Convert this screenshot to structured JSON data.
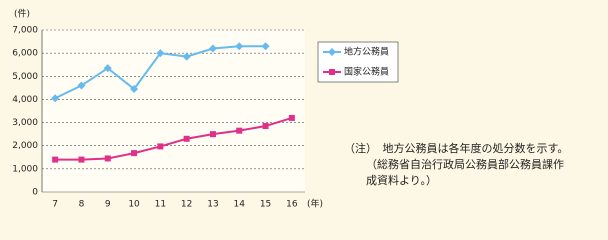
{
  "chart_data": {
    "type": "line",
    "y_unit": "(件)",
    "x_unit": "(年)",
    "categories": [
      "7",
      "8",
      "9",
      "10",
      "11",
      "12",
      "13",
      "14",
      "15",
      "16"
    ],
    "series": [
      {
        "name": "地方公務員",
        "color": "#66bbee",
        "marker": "diamond",
        "values": [
          4050,
          4600,
          5350,
          4450,
          6000,
          5850,
          6200,
          6300,
          6300,
          null
        ]
      },
      {
        "name": "国家公務員",
        "color": "#e0308a",
        "marker": "square",
        "values": [
          1400,
          1400,
          1450,
          1680,
          1970,
          2300,
          2500,
          2650,
          2850,
          3200
        ]
      }
    ],
    "ylim": [
      0,
      7000
    ],
    "yticks": [
      0,
      {
        "value": 1000,
        "label": "1,000"
      },
      {
        "value": 2000,
        "label": "2,000"
      },
      {
        "value": 3000,
        "label": "3,000"
      },
      {
        "value": 4000,
        "label": "4,000"
      },
      {
        "value": 5000,
        "label": "5,000"
      },
      {
        "value": 6000,
        "label": "6,000"
      },
      {
        "value": 7000,
        "label": "7,000"
      }
    ],
    "grid": true,
    "legend": "right",
    "note": [
      "（注）　地方公務員は各年度の処分数を示す。",
      "（総務省自治行政局公務員部公務員課作",
      "成資料より。）"
    ]
  }
}
